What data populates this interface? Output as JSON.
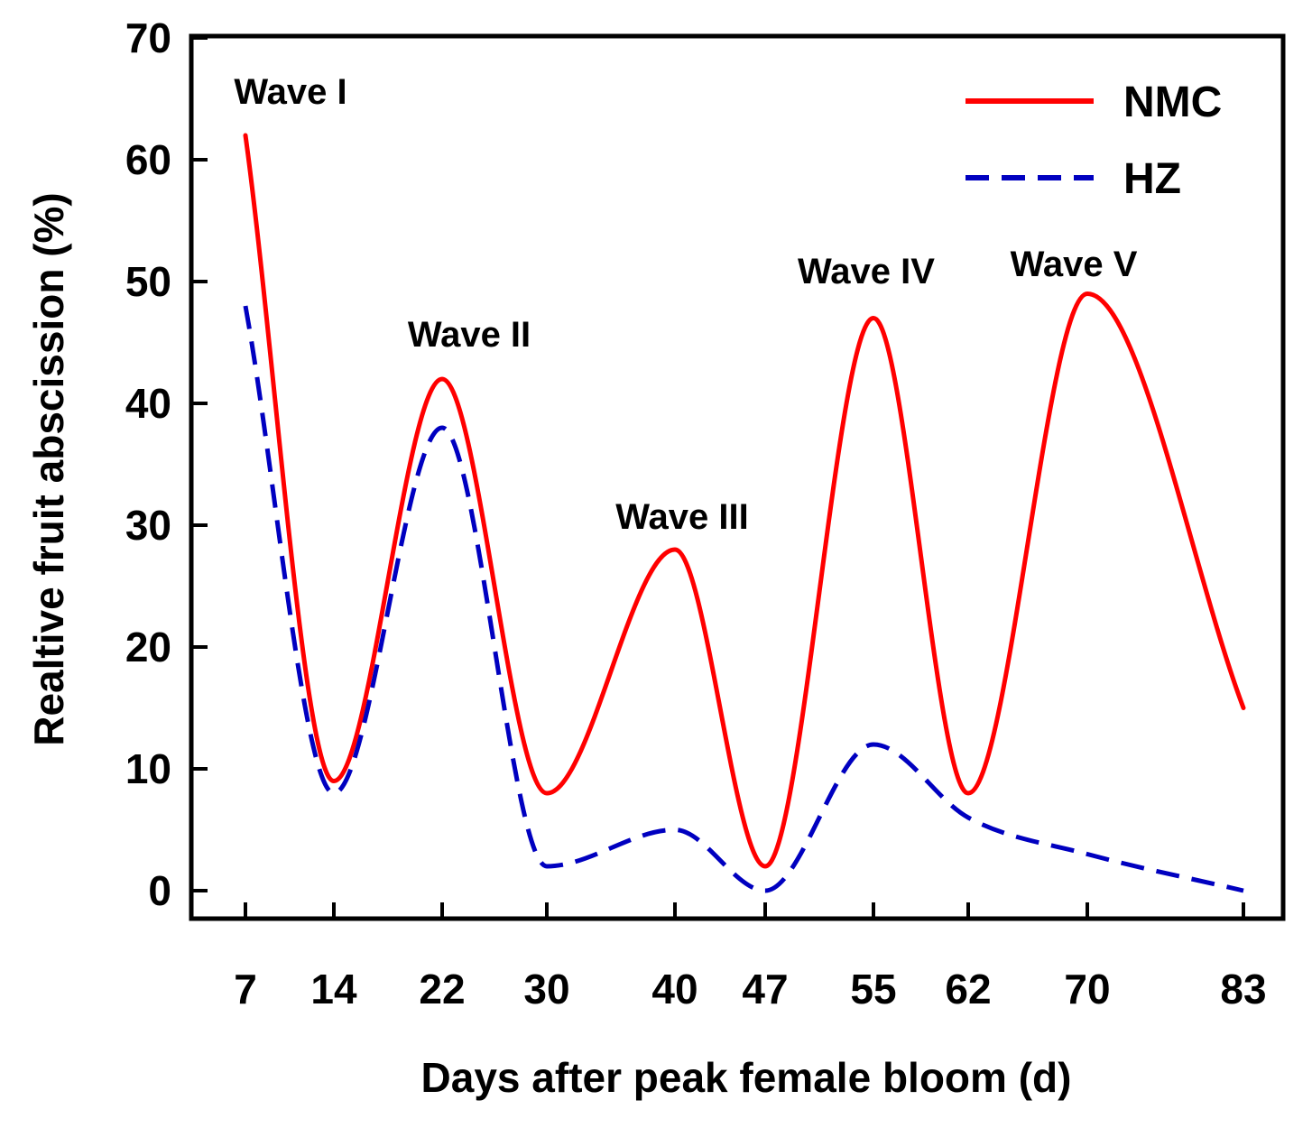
{
  "chart_data": {
    "type": "line",
    "xlabel": "Days after peak female bloom (d)",
    "ylabel": "Realtive fruit abscission (%)",
    "x": [
      7,
      14,
      22,
      30,
      40,
      47,
      55,
      62,
      70,
      83
    ],
    "x_ticks": [
      "7",
      "14",
      "22",
      "30",
      "40",
      "47",
      "55",
      "62",
      "70",
      "83"
    ],
    "y_ticks": [
      "0",
      "10",
      "20",
      "30",
      "40",
      "50",
      "60",
      "70"
    ],
    "ylim": [
      0,
      70
    ],
    "grid": false,
    "legend_position": "top-right",
    "series": [
      {
        "name": "NMC",
        "color": "#ff0000",
        "line_style": "solid",
        "values": [
          62,
          9,
          42,
          8,
          28,
          2,
          47,
          8,
          49,
          15
        ]
      },
      {
        "name": "HZ",
        "color": "#0000c0",
        "line_style": "dashed",
        "values": [
          48,
          8,
          38,
          2,
          5,
          0,
          12,
          6,
          3,
          0
        ]
      }
    ],
    "annotations": [
      {
        "text": "Wave I",
        "x": 7,
        "y": 62
      },
      {
        "text": "Wave II",
        "x": 22,
        "y": 42
      },
      {
        "text": "Wave III",
        "x": 40,
        "y": 28
      },
      {
        "text": "Wave IV",
        "x": 55,
        "y": 47
      },
      {
        "text": "Wave V",
        "x": 70,
        "y": 49
      }
    ]
  }
}
